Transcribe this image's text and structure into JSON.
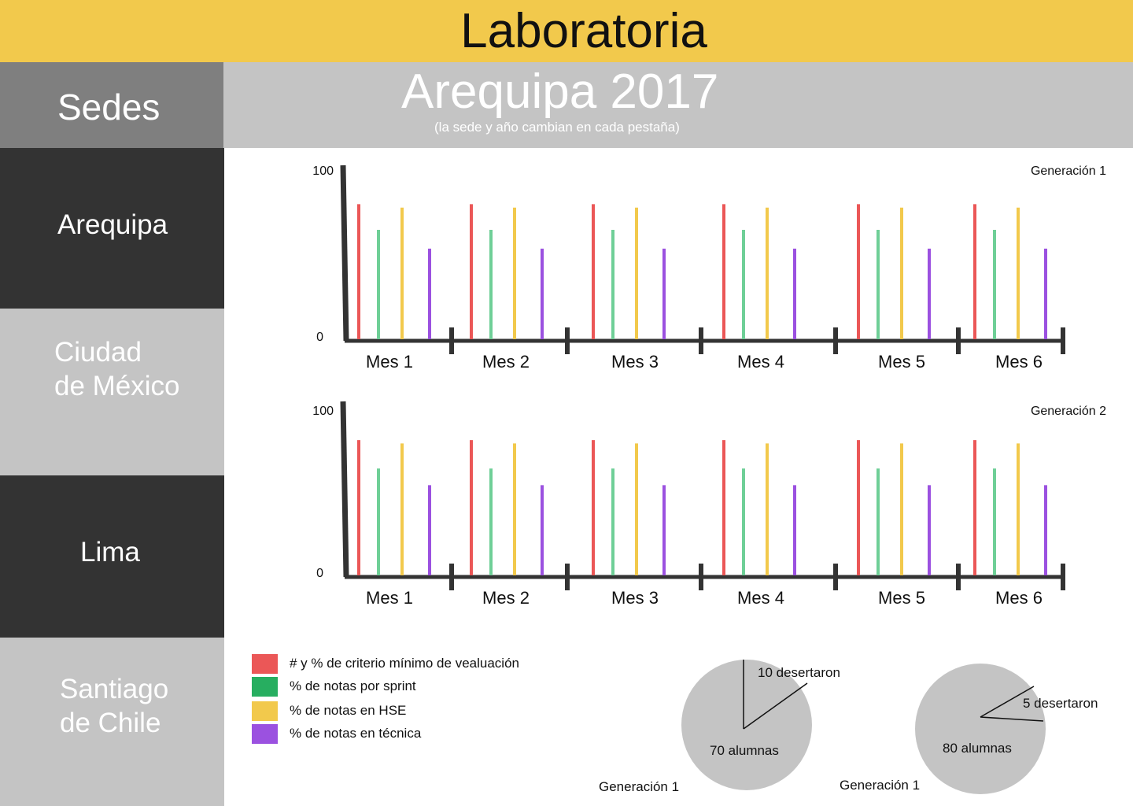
{
  "header": {
    "title": "Laboratoria"
  },
  "sidebar": {
    "heading": "Sedes",
    "items": [
      {
        "label": "Arequipa"
      },
      {
        "label": "Ciudad\nde México"
      },
      {
        "label": "Lima"
      },
      {
        "label": "Santiago\nde Chile"
      }
    ]
  },
  "campus": {
    "title": "Arequipa 2017",
    "note": "(la sede y año cambian en cada pestaña)"
  },
  "colors": {
    "criterio": "#eb5757",
    "sprint": "#27ae60",
    "sprint_bar": "#6fcf97",
    "hse": "#f2c94c",
    "tecnica": "#9b51e0",
    "axis": "#333333",
    "pie": "#c4c4c4",
    "accent": "#f2c94c"
  },
  "chart_data": [
    {
      "type": "bar",
      "title": "Generación 1",
      "categories": [
        "Mes 1",
        "Mes 2",
        "Mes 3",
        "Mes 4",
        "Mes 5",
        "Mes 6"
      ],
      "ylim": [
        0,
        100
      ],
      "yticks": [
        "100",
        "0"
      ],
      "series": [
        {
          "name": "# y % de criterio mínimo de vealuación",
          "values": [
            80,
            80,
            80,
            80,
            80,
            80
          ]
        },
        {
          "name": "% de notas por sprint",
          "values": [
            65,
            65,
            65,
            65,
            65,
            65
          ]
        },
        {
          "name": "% de notas en HSE",
          "values": [
            78,
            78,
            78,
            78,
            78,
            78
          ]
        },
        {
          "name": "% de notas en técnica",
          "values": [
            54,
            54,
            54,
            54,
            54,
            54
          ]
        }
      ]
    },
    {
      "type": "bar",
      "title": "Generación 2",
      "categories": [
        "Mes 1",
        "Mes 2",
        "Mes 3",
        "Mes 4",
        "Mes 5",
        "Mes 6"
      ],
      "ylim": [
        0,
        100
      ],
      "yticks": [
        "100",
        "0"
      ],
      "series": [
        {
          "name": "# y % de criterio mínimo de vealuación",
          "values": [
            82,
            82,
            82,
            82,
            82,
            82
          ]
        },
        {
          "name": "% de notas por sprint",
          "values": [
            65,
            65,
            65,
            65,
            65,
            65
          ]
        },
        {
          "name": "% de notas en HSE",
          "values": [
            80,
            80,
            80,
            80,
            80,
            80
          ]
        },
        {
          "name": "% de notas en técnica",
          "values": [
            55,
            55,
            55,
            55,
            55,
            55
          ]
        }
      ]
    },
    {
      "type": "pie",
      "title": "Generación 1",
      "slices": [
        {
          "label": "10 desertaron",
          "value": 10
        },
        {
          "label": "70 alumnas",
          "value": 70
        }
      ]
    },
    {
      "type": "pie",
      "title": "Generación 1",
      "slices": [
        {
          "label": "5 desertaron",
          "value": 5
        },
        {
          "label": "80 alumnas",
          "value": 80
        }
      ]
    }
  ],
  "legend": [
    {
      "label": "# y % de criterio mínimo de vealuación",
      "color": "#eb5757"
    },
    {
      "label": "% de notas por sprint",
      "color": "#27ae60"
    },
    {
      "label": "% de notas en HSE",
      "color": "#f2c94c"
    },
    {
      "label": "% de notas en técnica",
      "color": "#9b51e0"
    }
  ]
}
